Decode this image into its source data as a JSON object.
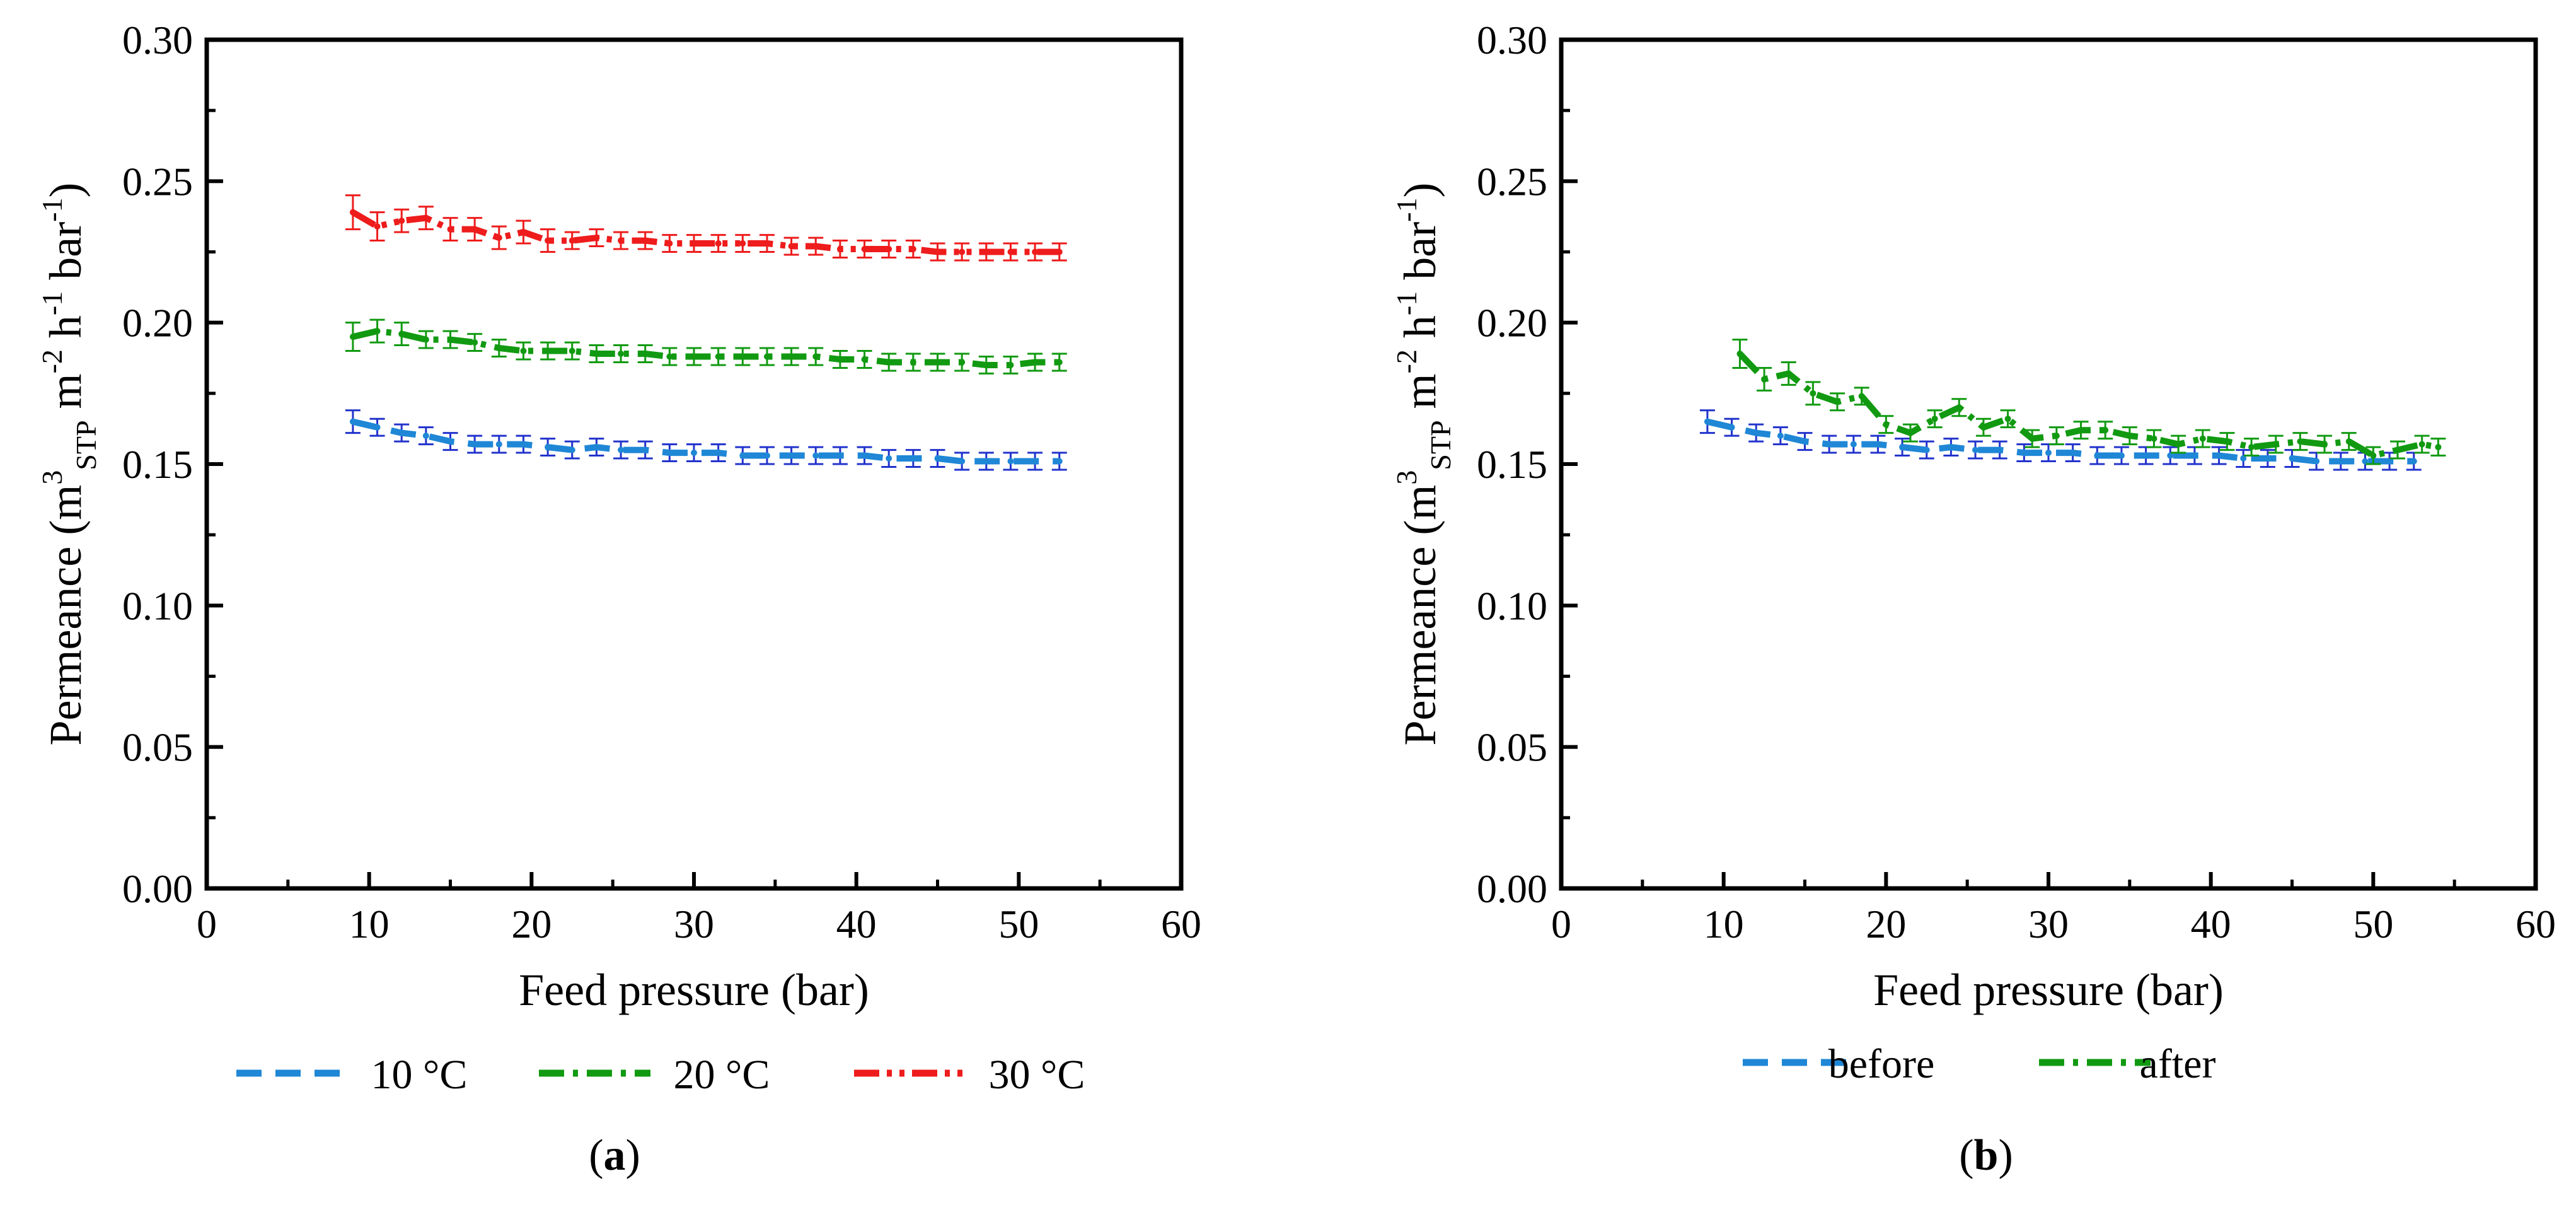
{
  "colors": {
    "c10": "#1f87d6",
    "c10_err": "#2233cc",
    "c20": "#119a11",
    "c30": "#ee1c1c"
  },
  "chart_data": [
    {
      "id": "a",
      "type": "line",
      "panel_label": "a",
      "ylabel": "Permeance (m3STP m-2 h-1 bar-1)",
      "ylabel_parts": {
        "pre": "Permeance (m",
        "sup1": "3",
        "sub1": "STP",
        "mid1": " m",
        "sup2": "-2",
        "mid2": " h",
        "sup3": "-1",
        "mid3": " bar",
        "sup4": "-1",
        "post": ")"
      },
      "xlabel": "Feed pressure (bar)",
      "xlim": [
        0,
        60
      ],
      "ylim": [
        0,
        0.3
      ],
      "xticks": [
        "0",
        "10",
        "20",
        "30",
        "40",
        "50",
        "60"
      ],
      "yticks": [
        "0.00",
        "0.05",
        "0.10",
        "0.15",
        "0.20",
        "0.25",
        "0.30"
      ],
      "series": [
        {
          "name": "10 °C",
          "color_key": "c10",
          "err_color_key": "c10_err",
          "dash": "dash",
          "x": [
            9,
            10.5,
            12,
            13.5,
            15,
            16.5,
            18,
            19.5,
            21,
            22.5,
            24,
            25.5,
            27,
            28.5,
            30,
            31.5,
            33,
            34.5,
            36,
            37.5,
            39,
            40.5,
            42,
            43.5,
            45,
            46.5,
            48,
            49.5,
            51,
            52.5
          ],
          "y": [
            0.165,
            0.163,
            0.161,
            0.16,
            0.158,
            0.157,
            0.157,
            0.157,
            0.156,
            0.155,
            0.156,
            0.155,
            0.155,
            0.154,
            0.154,
            0.154,
            0.153,
            0.153,
            0.153,
            0.153,
            0.153,
            0.153,
            0.152,
            0.152,
            0.152,
            0.151,
            0.151,
            0.151,
            0.151,
            0.151
          ],
          "err": [
            0.004,
            0.003,
            0.003,
            0.003,
            0.003,
            0.003,
            0.003,
            0.003,
            0.003,
            0.003,
            0.003,
            0.003,
            0.003,
            0.003,
            0.003,
            0.003,
            0.003,
            0.003,
            0.003,
            0.003,
            0.003,
            0.003,
            0.003,
            0.003,
            0.003,
            0.003,
            0.003,
            0.003,
            0.003,
            0.003
          ]
        },
        {
          "name": "20 °C",
          "color_key": "c20",
          "err_color_key": "c20",
          "dash": "dashdot",
          "x": [
            9,
            10.5,
            12,
            13.5,
            15,
            16.5,
            18,
            19.5,
            21,
            22.5,
            24,
            25.5,
            27,
            28.5,
            30,
            31.5,
            33,
            34.5,
            36,
            37.5,
            39,
            40.5,
            42,
            43.5,
            45,
            46.5,
            48,
            49.5,
            51,
            52.5
          ],
          "y": [
            0.195,
            0.197,
            0.196,
            0.194,
            0.194,
            0.193,
            0.191,
            0.19,
            0.19,
            0.19,
            0.189,
            0.189,
            0.189,
            0.188,
            0.188,
            0.188,
            0.188,
            0.188,
            0.188,
            0.188,
            0.187,
            0.187,
            0.186,
            0.186,
            0.186,
            0.186,
            0.185,
            0.185,
            0.186,
            0.186
          ],
          "err": [
            0.005,
            0.004,
            0.004,
            0.003,
            0.003,
            0.003,
            0.003,
            0.003,
            0.003,
            0.003,
            0.003,
            0.003,
            0.003,
            0.003,
            0.003,
            0.003,
            0.003,
            0.003,
            0.003,
            0.003,
            0.003,
            0.003,
            0.003,
            0.003,
            0.003,
            0.003,
            0.003,
            0.003,
            0.003,
            0.003
          ]
        },
        {
          "name": "30 °C",
          "color_key": "c30",
          "err_color_key": "c30",
          "dash": "dashdotdot",
          "x": [
            9,
            10.5,
            12,
            13.5,
            15,
            16.5,
            18,
            19.5,
            21,
            22.5,
            24,
            25.5,
            27,
            28.5,
            30,
            31.5,
            33,
            34.5,
            36,
            37.5,
            39,
            40.5,
            42,
            43.5,
            45,
            46.5,
            48,
            49.5,
            51,
            52.5
          ],
          "y": [
            0.239,
            0.234,
            0.236,
            0.237,
            0.233,
            0.233,
            0.23,
            0.232,
            0.229,
            0.229,
            0.23,
            0.229,
            0.229,
            0.228,
            0.228,
            0.228,
            0.228,
            0.228,
            0.227,
            0.227,
            0.226,
            0.226,
            0.226,
            0.226,
            0.225,
            0.225,
            0.225,
            0.225,
            0.225,
            0.225
          ],
          "err": [
            0.006,
            0.005,
            0.004,
            0.004,
            0.004,
            0.004,
            0.004,
            0.004,
            0.004,
            0.003,
            0.003,
            0.003,
            0.003,
            0.003,
            0.003,
            0.003,
            0.003,
            0.003,
            0.003,
            0.003,
            0.003,
            0.003,
            0.003,
            0.003,
            0.003,
            0.003,
            0.003,
            0.003,
            0.003,
            0.003
          ]
        }
      ]
    },
    {
      "id": "b",
      "type": "line",
      "panel_label": "b",
      "ylabel": "Permeance (m3STP m-2 h-1 bar-1)",
      "ylabel_parts": {
        "pre": "Permeance (m",
        "sup1": "3",
        "sub1": "STP",
        "mid1": " m",
        "sup2": "-2",
        "mid2": " h",
        "sup3": "-1",
        "mid3": " bar",
        "sup4": "-1",
        "post": ")"
      },
      "xlabel": "Feed pressure (bar)",
      "xlim": [
        0,
        60
      ],
      "ylim": [
        0,
        0.3
      ],
      "xticks": [
        "0",
        "10",
        "20",
        "30",
        "40",
        "50",
        "60"
      ],
      "yticks": [
        "0.00",
        "0.05",
        "0.10",
        "0.15",
        "0.20",
        "0.25",
        "0.30"
      ],
      "series": [
        {
          "name": "before",
          "color_key": "c10",
          "err_color_key": "c10_err",
          "dash": "dash",
          "x": [
            9,
            10.5,
            12,
            13.5,
            15,
            16.5,
            18,
            19.5,
            21,
            22.5,
            24,
            25.5,
            27,
            28.5,
            30,
            31.5,
            33,
            34.5,
            36,
            37.5,
            39,
            40.5,
            42,
            43.5,
            45,
            46.5,
            48,
            49.5,
            51,
            52.5
          ],
          "y": [
            0.165,
            0.163,
            0.161,
            0.16,
            0.158,
            0.157,
            0.157,
            0.157,
            0.156,
            0.155,
            0.156,
            0.155,
            0.155,
            0.154,
            0.154,
            0.154,
            0.153,
            0.153,
            0.153,
            0.153,
            0.153,
            0.153,
            0.152,
            0.152,
            0.152,
            0.151,
            0.151,
            0.151,
            0.151,
            0.151
          ],
          "err": [
            0.004,
            0.003,
            0.003,
            0.003,
            0.003,
            0.003,
            0.003,
            0.003,
            0.003,
            0.003,
            0.003,
            0.003,
            0.003,
            0.003,
            0.003,
            0.003,
            0.003,
            0.003,
            0.003,
            0.003,
            0.003,
            0.003,
            0.003,
            0.003,
            0.003,
            0.003,
            0.003,
            0.003,
            0.003,
            0.003
          ]
        },
        {
          "name": "after",
          "color_key": "c20",
          "err_color_key": "c20",
          "dash": "dashdot",
          "x": [
            11,
            12.5,
            14,
            15.5,
            17,
            18.5,
            20,
            21.5,
            23,
            24.5,
            26,
            27.5,
            29,
            30.5,
            32,
            33.5,
            35,
            36.5,
            38,
            39.5,
            41,
            42.5,
            44,
            45.5,
            47,
            48.5,
            50,
            51.5,
            53,
            54
          ],
          "y": [
            0.189,
            0.18,
            0.182,
            0.175,
            0.172,
            0.174,
            0.164,
            0.161,
            0.166,
            0.17,
            0.163,
            0.166,
            0.159,
            0.16,
            0.162,
            0.162,
            0.16,
            0.159,
            0.157,
            0.159,
            0.158,
            0.156,
            0.157,
            0.158,
            0.157,
            0.158,
            0.153,
            0.155,
            0.157,
            0.156
          ],
          "err": [
            0.005,
            0.004,
            0.004,
            0.004,
            0.003,
            0.003,
            0.003,
            0.003,
            0.003,
            0.003,
            0.003,
            0.003,
            0.003,
            0.003,
            0.003,
            0.003,
            0.003,
            0.003,
            0.003,
            0.003,
            0.003,
            0.003,
            0.003,
            0.003,
            0.003,
            0.003,
            0.003,
            0.003,
            0.003,
            0.003
          ]
        }
      ]
    }
  ]
}
